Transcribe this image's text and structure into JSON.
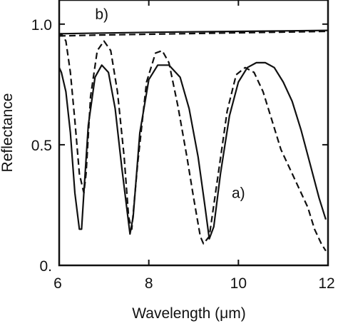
{
  "chart_data": {
    "type": "line",
    "title": "",
    "xlabel": "Wavelength (μm)",
    "ylabel": "Reflectance",
    "xlim": [
      6,
      12
    ],
    "ylim": [
      0,
      1.1
    ],
    "x_ticks": [
      6,
      8,
      10,
      12
    ],
    "x_tick_labels": [
      "6",
      "8",
      "10",
      "12"
    ],
    "y_ticks": [
      0,
      0.5,
      1.0
    ],
    "y_tick_labels": [
      "0.",
      "0.5",
      "1.0"
    ],
    "grid": false,
    "legend": "none",
    "annotations": [
      {
        "text": "b)",
        "x": 6.95,
        "y": 1.02
      },
      {
        "text": "a)",
        "x": 10.0,
        "y": 0.28
      }
    ],
    "series": [
      {
        "style": "solid",
        "x": [
          6.0,
          6.05,
          6.15,
          6.25,
          6.35,
          6.45,
          6.5,
          6.55,
          6.65,
          6.8,
          6.95,
          7.1,
          7.25,
          7.4,
          7.52,
          7.58,
          7.65,
          7.8,
          8.0,
          8.2,
          8.45,
          8.7,
          8.9,
          9.1,
          9.25,
          9.35,
          9.45,
          9.6,
          9.8,
          10.0,
          10.2,
          10.4,
          10.6,
          10.8,
          11.0,
          11.2,
          11.4,
          11.6,
          11.8,
          11.95
        ],
        "y": [
          0.82,
          0.8,
          0.72,
          0.55,
          0.3,
          0.15,
          0.15,
          0.3,
          0.58,
          0.78,
          0.83,
          0.8,
          0.65,
          0.4,
          0.22,
          0.13,
          0.2,
          0.55,
          0.77,
          0.83,
          0.83,
          0.78,
          0.65,
          0.45,
          0.25,
          0.11,
          0.16,
          0.38,
          0.62,
          0.76,
          0.82,
          0.84,
          0.84,
          0.82,
          0.76,
          0.68,
          0.56,
          0.42,
          0.28,
          0.19
        ]
      },
      {
        "style": "dashed",
        "x": [
          6.0,
          6.05,
          6.15,
          6.25,
          6.35,
          6.45,
          6.55,
          6.6,
          6.7,
          6.85,
          7.0,
          7.15,
          7.3,
          7.45,
          7.55,
          7.62,
          7.75,
          7.95,
          8.15,
          8.3,
          8.45,
          8.65,
          8.85,
          9.0,
          9.15,
          9.22,
          9.35,
          9.55,
          9.75,
          9.95,
          10.15,
          10.35,
          10.55,
          10.75,
          10.95,
          11.15,
          11.35,
          11.55,
          11.7,
          11.85,
          11.95
        ],
        "y": [
          0.95,
          0.96,
          0.93,
          0.8,
          0.6,
          0.38,
          0.3,
          0.38,
          0.7,
          0.89,
          0.93,
          0.89,
          0.72,
          0.45,
          0.2,
          0.15,
          0.42,
          0.76,
          0.88,
          0.89,
          0.84,
          0.66,
          0.45,
          0.28,
          0.12,
          0.09,
          0.12,
          0.38,
          0.64,
          0.79,
          0.82,
          0.8,
          0.72,
          0.6,
          0.48,
          0.4,
          0.32,
          0.24,
          0.15,
          0.09,
          0.06
        ]
      },
      {
        "style": "solid",
        "x": [
          6.0,
          7.0,
          8.0,
          9.0,
          10.0,
          11.0,
          12.0
        ],
        "y": [
          0.96,
          0.963,
          0.966,
          0.968,
          0.97,
          0.972,
          0.974
        ]
      },
      {
        "style": "dashed",
        "x": [
          6.0,
          7.0,
          8.0,
          9.0,
          10.0,
          11.0,
          12.0
        ],
        "y": [
          0.951,
          0.955,
          0.958,
          0.961,
          0.964,
          0.967,
          0.97
        ]
      }
    ]
  }
}
